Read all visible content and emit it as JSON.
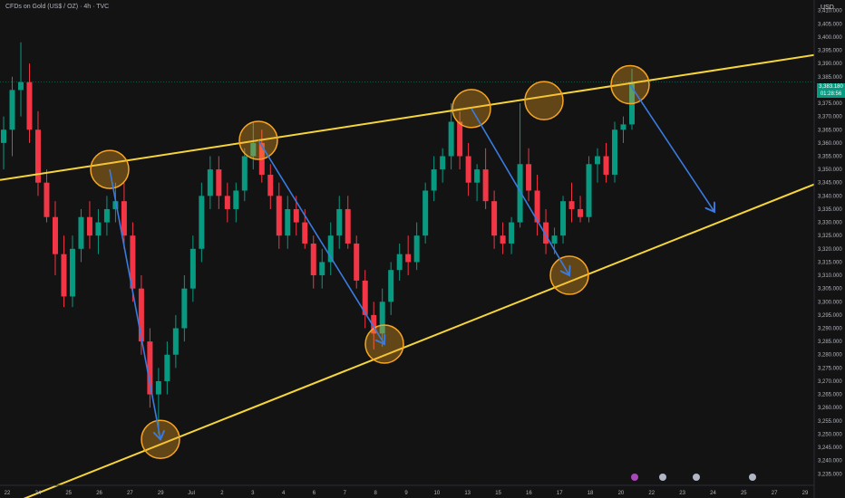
{
  "header": {
    "title": "CFDs on Gold (US$ / OZ) · 4h · TVC",
    "currency": "USD"
  },
  "price_tag": {
    "price": "3,383.180",
    "countdown": "01:28:56"
  },
  "colors": {
    "up": "#089981",
    "down": "#f23645",
    "trendline": "#f5d53a",
    "arrow": "#3a7be0",
    "marker_fill": "#f7a521",
    "marker_stroke": "#f7a521"
  },
  "events": [
    {
      "x": "Jul 21",
      "icon": "lightning-icon",
      "color": "#ab47bc"
    },
    {
      "x": "Jul 22",
      "icon": "flag-icon",
      "color": "#b0b6c5"
    },
    {
      "x": "Jul 23",
      "icon": "flag-icon",
      "color": "#b0b6c5"
    },
    {
      "x": "Jul 25",
      "icon": "flag-icon",
      "color": "#b0b6c5"
    }
  ],
  "chart_data": {
    "type": "candlestick",
    "title": "CFDs on Gold (US$ / OZ) · 4h · TVC",
    "ylabel": "USD",
    "ylim": [
      3231,
      3414
    ],
    "y_ticks": [
      3235,
      3240,
      3245,
      3250,
      3255,
      3260,
      3265,
      3270,
      3275,
      3280,
      3285,
      3290,
      3295,
      3300,
      3305,
      3310,
      3315,
      3320,
      3325,
      3330,
      3335,
      3340,
      3345,
      3350,
      3355,
      3360,
      3365,
      3370,
      3375,
      3380,
      3385,
      3390,
      3395,
      3400,
      3405,
      3410
    ],
    "x_ticks": [
      "22",
      "24",
      "25",
      "26",
      "27",
      "29",
      "Jul",
      "2",
      "3",
      "4",
      "6",
      "7",
      "8",
      "9",
      "10",
      "13",
      "15",
      "16",
      "17",
      "18",
      "20",
      "22",
      "23",
      "24",
      "25",
      "27",
      "29"
    ],
    "candles": [
      {
        "o": 3360,
        "h": 3370,
        "l": 3350,
        "c": 3365
      },
      {
        "o": 3365,
        "h": 3385,
        "l": 3355,
        "c": 3380
      },
      {
        "o": 3380,
        "h": 3398,
        "l": 3370,
        "c": 3383
      },
      {
        "o": 3383,
        "h": 3390,
        "l": 3360,
        "c": 3365
      },
      {
        "o": 3365,
        "h": 3372,
        "l": 3340,
        "c": 3345
      },
      {
        "o": 3345,
        "h": 3350,
        "l": 3330,
        "c": 3332
      },
      {
        "o": 3332,
        "h": 3338,
        "l": 3310,
        "c": 3318
      },
      {
        "o": 3318,
        "h": 3325,
        "l": 3298,
        "c": 3302
      },
      {
        "o": 3302,
        "h": 3325,
        "l": 3298,
        "c": 3320
      },
      {
        "o": 3320,
        "h": 3335,
        "l": 3315,
        "c": 3332
      },
      {
        "o": 3332,
        "h": 3338,
        "l": 3320,
        "c": 3325
      },
      {
        "o": 3325,
        "h": 3335,
        "l": 3318,
        "c": 3330
      },
      {
        "o": 3330,
        "h": 3340,
        "l": 3325,
        "c": 3335
      },
      {
        "o": 3335,
        "h": 3345,
        "l": 3330,
        "c": 3338
      },
      {
        "o": 3338,
        "h": 3345,
        "l": 3320,
        "c": 3325
      },
      {
        "o": 3325,
        "h": 3330,
        "l": 3300,
        "c": 3305
      },
      {
        "o": 3305,
        "h": 3310,
        "l": 3280,
        "c": 3285
      },
      {
        "o": 3285,
        "h": 3290,
        "l": 3260,
        "c": 3265
      },
      {
        "o": 3265,
        "h": 3275,
        "l": 3250,
        "c": 3270
      },
      {
        "o": 3270,
        "h": 3285,
        "l": 3265,
        "c": 3280
      },
      {
        "o": 3280,
        "h": 3295,
        "l": 3275,
        "c": 3290
      },
      {
        "o": 3290,
        "h": 3310,
        "l": 3285,
        "c": 3305
      },
      {
        "o": 3305,
        "h": 3325,
        "l": 3300,
        "c": 3320
      },
      {
        "o": 3320,
        "h": 3345,
        "l": 3315,
        "c": 3340
      },
      {
        "o": 3340,
        "h": 3355,
        "l": 3335,
        "c": 3350
      },
      {
        "o": 3350,
        "h": 3355,
        "l": 3335,
        "c": 3340
      },
      {
        "o": 3340,
        "h": 3345,
        "l": 3330,
        "c": 3335
      },
      {
        "o": 3335,
        "h": 3345,
        "l": 3330,
        "c": 3342
      },
      {
        "o": 3342,
        "h": 3358,
        "l": 3338,
        "c": 3355
      },
      {
        "o": 3355,
        "h": 3368,
        "l": 3350,
        "c": 3360
      },
      {
        "o": 3360,
        "h": 3365,
        "l": 3345,
        "c": 3348
      },
      {
        "o": 3348,
        "h": 3352,
        "l": 3335,
        "c": 3340
      },
      {
        "o": 3340,
        "h": 3345,
        "l": 3320,
        "c": 3325
      },
      {
        "o": 3325,
        "h": 3340,
        "l": 3320,
        "c": 3335
      },
      {
        "o": 3335,
        "h": 3340,
        "l": 3325,
        "c": 3330
      },
      {
        "o": 3330,
        "h": 3335,
        "l": 3320,
        "c": 3322
      },
      {
        "o": 3322,
        "h": 3325,
        "l": 3305,
        "c": 3310
      },
      {
        "o": 3310,
        "h": 3320,
        "l": 3305,
        "c": 3315
      },
      {
        "o": 3315,
        "h": 3330,
        "l": 3310,
        "c": 3325
      },
      {
        "o": 3325,
        "h": 3340,
        "l": 3320,
        "c": 3335
      },
      {
        "o": 3335,
        "h": 3340,
        "l": 3320,
        "c": 3322
      },
      {
        "o": 3322,
        "h": 3325,
        "l": 3305,
        "c": 3308
      },
      {
        "o": 3308,
        "h": 3312,
        "l": 3290,
        "c": 3295
      },
      {
        "o": 3295,
        "h": 3300,
        "l": 3282,
        "c": 3288
      },
      {
        "o": 3288,
        "h": 3305,
        "l": 3283,
        "c": 3300
      },
      {
        "o": 3300,
        "h": 3315,
        "l": 3295,
        "c": 3312
      },
      {
        "o": 3312,
        "h": 3322,
        "l": 3308,
        "c": 3318
      },
      {
        "o": 3318,
        "h": 3325,
        "l": 3310,
        "c": 3315
      },
      {
        "o": 3315,
        "h": 3330,
        "l": 3312,
        "c": 3325
      },
      {
        "o": 3325,
        "h": 3345,
        "l": 3322,
        "c": 3342
      },
      {
        "o": 3342,
        "h": 3355,
        "l": 3338,
        "c": 3350
      },
      {
        "o": 3350,
        "h": 3358,
        "l": 3345,
        "c": 3355
      },
      {
        "o": 3355,
        "h": 3375,
        "l": 3350,
        "c": 3368
      },
      {
        "o": 3368,
        "h": 3372,
        "l": 3350,
        "c": 3355
      },
      {
        "o": 3355,
        "h": 3360,
        "l": 3340,
        "c": 3345
      },
      {
        "o": 3345,
        "h": 3352,
        "l": 3338,
        "c": 3350
      },
      {
        "o": 3350,
        "h": 3358,
        "l": 3335,
        "c": 3338
      },
      {
        "o": 3338,
        "h": 3342,
        "l": 3320,
        "c": 3325
      },
      {
        "o": 3325,
        "h": 3330,
        "l": 3318,
        "c": 3322
      },
      {
        "o": 3322,
        "h": 3332,
        "l": 3318,
        "c": 3330
      },
      {
        "o": 3330,
        "h": 3375,
        "l": 3328,
        "c": 3352
      },
      {
        "o": 3352,
        "h": 3358,
        "l": 3338,
        "c": 3342
      },
      {
        "o": 3342,
        "h": 3348,
        "l": 3325,
        "c": 3330
      },
      {
        "o": 3330,
        "h": 3335,
        "l": 3318,
        "c": 3322
      },
      {
        "o": 3322,
        "h": 3328,
        "l": 3318,
        "c": 3325
      },
      {
        "o": 3325,
        "h": 3340,
        "l": 3322,
        "c": 3338
      },
      {
        "o": 3338,
        "h": 3345,
        "l": 3330,
        "c": 3335
      },
      {
        "o": 3335,
        "h": 3340,
        "l": 3330,
        "c": 3332
      },
      {
        "o": 3332,
        "h": 3355,
        "l": 3330,
        "c": 3352
      },
      {
        "o": 3352,
        "h": 3358,
        "l": 3345,
        "c": 3355
      },
      {
        "o": 3355,
        "h": 3360,
        "l": 3345,
        "c": 3348
      },
      {
        "o": 3348,
        "h": 3368,
        "l": 3345,
        "c": 3365
      },
      {
        "o": 3365,
        "h": 3370,
        "l": 3360,
        "c": 3367
      },
      {
        "o": 3367,
        "h": 3388,
        "l": 3365,
        "c": 3383
      }
    ],
    "trendlines": [
      {
        "name": "upper",
        "from": [
          0,
          3346
        ],
        "to": [
          932,
          3395
        ]
      },
      {
        "name": "lower",
        "from": [
          0,
          3222
        ],
        "to": [
          932,
          3349
        ]
      }
    ],
    "markers": [
      {
        "label": "touch-1",
        "price": 3350,
        "x": 121
      },
      {
        "label": "touch-2",
        "price": 3361,
        "x": 285
      },
      {
        "label": "touch-3",
        "price": 3373,
        "x": 520
      },
      {
        "label": "touch-4",
        "price": 3376,
        "x": 600
      },
      {
        "label": "touch-5",
        "price": 3382,
        "x": 695
      },
      {
        "label": "touch-6",
        "price": 3248,
        "x": 177
      },
      {
        "label": "touch-7",
        "price": 3284,
        "x": 424
      },
      {
        "label": "touch-8",
        "price": 3310,
        "x": 628
      }
    ],
    "arrows": [
      {
        "from": [
          121,
          3350
        ],
        "to": [
          177,
          3248
        ]
      },
      {
        "from": [
          285,
          3361
        ],
        "to": [
          424,
          3284
        ]
      },
      {
        "from": [
          520,
          3373
        ],
        "to": [
          628,
          3310
        ]
      },
      {
        "from": [
          695,
          3382
        ],
        "to": [
          788,
          3334
        ]
      }
    ]
  }
}
